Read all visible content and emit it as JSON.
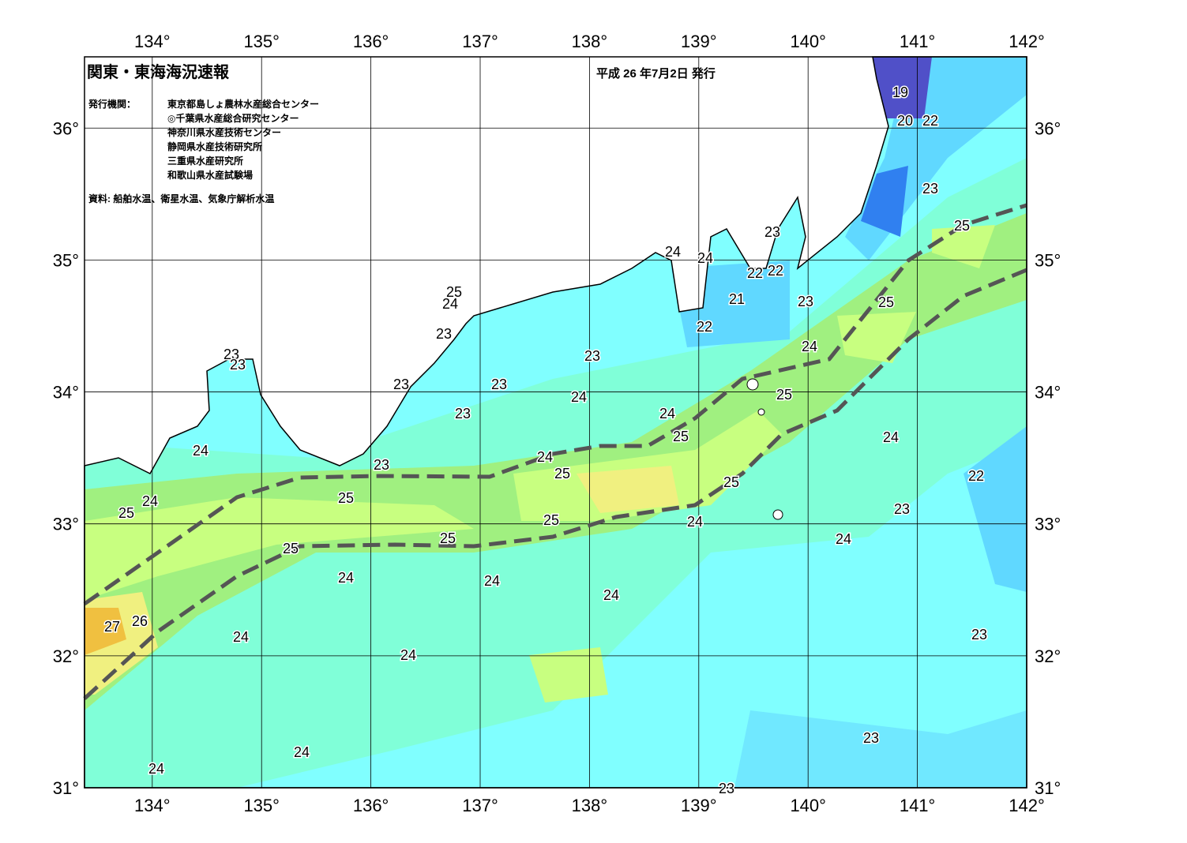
{
  "map": {
    "title": "関東・東海海況速報",
    "date": "平成 26 年7月2日 発行",
    "agency_label": "発行機関：",
    "agencies": [
      "東京都島しょ農林水産総合センター",
      "◎千葉県水産総合研究センター",
      "神奈川県水産技術センター",
      "静岡県水産技術研究所",
      "三重県水産研究所",
      "和歌山県水産試験場"
    ],
    "source": "資料: 船舶水温、衛星水温、気象庁解析水温",
    "lon_range": [
      133.38,
      142
    ],
    "lat_range": [
      31,
      36.54
    ],
    "lon_ticks": [
      {
        "value": 134,
        "label": "134°"
      },
      {
        "value": 135,
        "label": "135°"
      },
      {
        "value": 136,
        "label": "136°"
      },
      {
        "value": 137,
        "label": "137°"
      },
      {
        "value": 138,
        "label": "138°"
      },
      {
        "value": 139,
        "label": "139°"
      },
      {
        "value": 140,
        "label": "140°"
      },
      {
        "value": 141,
        "label": "141°"
      },
      {
        "value": 142,
        "label": "142°"
      }
    ],
    "lat_ticks": [
      {
        "value": 31,
        "label": "31°"
      },
      {
        "value": 32,
        "label": "32°"
      },
      {
        "value": 33,
        "label": "33°"
      },
      {
        "value": 34,
        "label": "34°"
      },
      {
        "value": 35,
        "label": "35°"
      },
      {
        "value": 36,
        "label": "36°"
      }
    ],
    "contour_labels": [
      19,
      20,
      22,
      23,
      25,
      23,
      24,
      24,
      22,
      22,
      21,
      23,
      25,
      22,
      24,
      25,
      24,
      23,
      23,
      23,
      23,
      23,
      23,
      24,
      25,
      23,
      24,
      25,
      24,
      24,
      24,
      23,
      25,
      22,
      25,
      25,
      24,
      25,
      23,
      25,
      24,
      24,
      25,
      25,
      24,
      24,
      24,
      27,
      26,
      23,
      24,
      24,
      23,
      24,
      24,
      23
    ]
  }
}
